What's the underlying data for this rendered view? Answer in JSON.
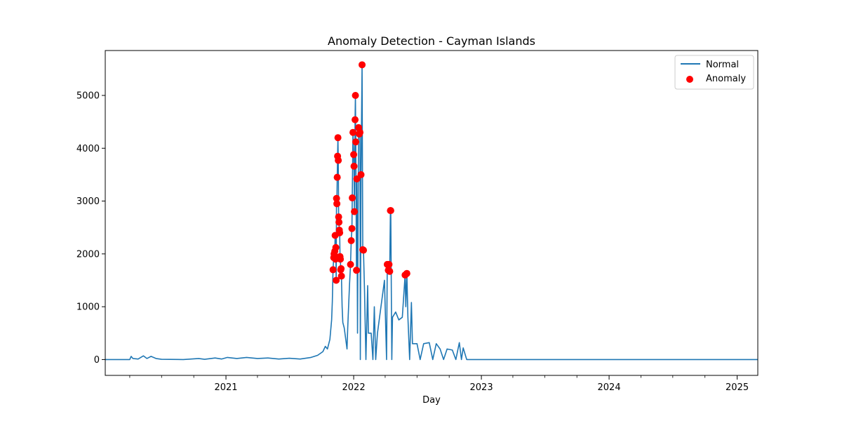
{
  "chart_data": {
    "type": "line",
    "title": "Anomaly Detection - Cayman Islands",
    "xlabel": "Day",
    "ylabel": "",
    "x_range": [
      "2020-01-22",
      "2025-03-01"
    ],
    "ylim": [
      -300,
      5850
    ],
    "y_ticks": [
      0,
      1000,
      2000,
      3000,
      4000,
      5000
    ],
    "x_ticks": [
      {
        "date": "2021-01-01",
        "label": "2021"
      },
      {
        "date": "2022-01-01",
        "label": "2022"
      },
      {
        "date": "2023-01-01",
        "label": "2023"
      },
      {
        "date": "2024-01-01",
        "label": "2024"
      },
      {
        "date": "2025-01-01",
        "label": "2025"
      }
    ],
    "grid": false,
    "legend_position": "top-right",
    "colors": {
      "normal": "#1f77b4",
      "anomaly": "#ff0000"
    },
    "series": [
      {
        "name": "Normal",
        "type": "line",
        "points": [
          [
            "2020-01-22",
            0
          ],
          [
            "2020-04-01",
            0
          ],
          [
            "2020-04-05",
            60
          ],
          [
            "2020-04-10",
            20
          ],
          [
            "2020-04-25",
            10
          ],
          [
            "2020-05-10",
            70
          ],
          [
            "2020-05-20",
            20
          ],
          [
            "2020-06-01",
            60
          ],
          [
            "2020-06-15",
            20
          ],
          [
            "2020-07-01",
            5
          ],
          [
            "2020-09-01",
            0
          ],
          [
            "2020-10-15",
            20
          ],
          [
            "2020-11-01",
            5
          ],
          [
            "2020-12-01",
            30
          ],
          [
            "2020-12-20",
            10
          ],
          [
            "2021-01-05",
            40
          ],
          [
            "2021-02-01",
            20
          ],
          [
            "2021-03-01",
            40
          ],
          [
            "2021-04-01",
            20
          ],
          [
            "2021-05-01",
            30
          ],
          [
            "2021-06-01",
            10
          ],
          [
            "2021-07-01",
            25
          ],
          [
            "2021-08-01",
            10
          ],
          [
            "2021-09-01",
            40
          ],
          [
            "2021-09-20",
            80
          ],
          [
            "2021-10-05",
            150
          ],
          [
            "2021-10-12",
            250
          ],
          [
            "2021-10-18",
            200
          ],
          [
            "2021-10-25",
            380
          ],
          [
            "2021-10-30",
            750
          ],
          [
            "2021-11-01",
            1100
          ],
          [
            "2021-11-03",
            1700
          ],
          [
            "2021-11-05",
            1930
          ],
          [
            "2021-11-06",
            2000
          ],
          [
            "2021-11-08",
            2050
          ],
          [
            "2021-11-09",
            2350
          ],
          [
            "2021-11-10",
            1900
          ],
          [
            "2021-11-11",
            2120
          ],
          [
            "2021-11-12",
            1500
          ],
          [
            "2021-11-13",
            3050
          ],
          [
            "2021-11-14",
            2950
          ],
          [
            "2021-11-15",
            3450
          ],
          [
            "2021-11-16",
            3850
          ],
          [
            "2021-11-17",
            4200
          ],
          [
            "2021-11-18",
            3770
          ],
          [
            "2021-11-19",
            2700
          ],
          [
            "2021-11-20",
            2600
          ],
          [
            "2021-11-21",
            2450
          ],
          [
            "2021-11-22",
            2400
          ],
          [
            "2021-11-23",
            1950
          ],
          [
            "2021-11-24",
            1900
          ],
          [
            "2021-11-25",
            1700
          ],
          [
            "2021-11-26",
            1720
          ],
          [
            "2021-11-27",
            1580
          ],
          [
            "2021-11-29",
            1000
          ],
          [
            "2021-12-01",
            700
          ],
          [
            "2021-12-05",
            600
          ],
          [
            "2021-12-10",
            350
          ],
          [
            "2021-12-13",
            200
          ],
          [
            "2021-12-15",
            600
          ],
          [
            "2021-12-20",
            1400
          ],
          [
            "2021-12-23",
            1800
          ],
          [
            "2021-12-25",
            2250
          ],
          [
            "2021-12-27",
            2480
          ],
          [
            "2021-12-28",
            3060
          ],
          [
            "2021-12-30",
            4300
          ],
          [
            "2022-01-01",
            3880
          ],
          [
            "2022-01-02",
            3660
          ],
          [
            "2022-01-03",
            2800
          ],
          [
            "2022-01-05",
            4540
          ],
          [
            "2022-01-06",
            5000
          ],
          [
            "2022-01-07",
            4120
          ],
          [
            "2022-01-09",
            1690
          ],
          [
            "2022-01-10",
            3420
          ],
          [
            "2022-01-12",
            500
          ],
          [
            "2022-01-15",
            4390
          ],
          [
            "2022-01-17",
            4270
          ],
          [
            "2022-01-19",
            4300
          ],
          [
            "2022-01-20",
            0
          ],
          [
            "2022-01-22",
            3500
          ],
          [
            "2022-01-25",
            5580
          ],
          [
            "2022-01-27",
            2080
          ],
          [
            "2022-01-29",
            2070
          ],
          [
            "2022-02-01",
            1300
          ],
          [
            "2022-02-05",
            0
          ],
          [
            "2022-02-10",
            1400
          ],
          [
            "2022-02-12",
            500
          ],
          [
            "2022-02-20",
            500
          ],
          [
            "2022-02-25",
            0
          ],
          [
            "2022-03-01",
            1000
          ],
          [
            "2022-03-05",
            0
          ],
          [
            "2022-03-10",
            500
          ],
          [
            "2022-03-20",
            1000
          ],
          [
            "2022-03-30",
            1500
          ],
          [
            "2022-04-05",
            0
          ],
          [
            "2022-04-07",
            1800
          ],
          [
            "2022-04-10",
            1690
          ],
          [
            "2022-04-12",
            1800
          ],
          [
            "2022-04-14",
            1670
          ],
          [
            "2022-04-16",
            2820
          ],
          [
            "2022-04-17",
            2820
          ],
          [
            "2022-04-20",
            0
          ],
          [
            "2022-04-22",
            800
          ],
          [
            "2022-05-01",
            900
          ],
          [
            "2022-05-10",
            750
          ],
          [
            "2022-05-20",
            800
          ],
          [
            "2022-05-28",
            1600
          ],
          [
            "2022-05-30",
            1000
          ],
          [
            "2022-06-02",
            1630
          ],
          [
            "2022-06-05",
            800
          ],
          [
            "2022-06-10",
            0
          ],
          [
            "2022-06-15",
            1080
          ],
          [
            "2022-06-18",
            300
          ],
          [
            "2022-07-01",
            300
          ],
          [
            "2022-07-10",
            0
          ],
          [
            "2022-07-20",
            300
          ],
          [
            "2022-08-05",
            320
          ],
          [
            "2022-08-15",
            0
          ],
          [
            "2022-08-25",
            300
          ],
          [
            "2022-09-05",
            200
          ],
          [
            "2022-09-15",
            0
          ],
          [
            "2022-09-25",
            200
          ],
          [
            "2022-10-10",
            180
          ],
          [
            "2022-10-20",
            0
          ],
          [
            "2022-10-30",
            320
          ],
          [
            "2022-11-05",
            0
          ],
          [
            "2022-11-10",
            220
          ],
          [
            "2022-11-20",
            0
          ],
          [
            "2022-12-01",
            0
          ],
          [
            "2025-03-01",
            0
          ]
        ]
      },
      {
        "name": "Anomaly",
        "type": "scatter",
        "points": [
          [
            "2021-11-03",
            1700
          ],
          [
            "2021-11-05",
            1930
          ],
          [
            "2021-11-06",
            2000
          ],
          [
            "2021-11-08",
            2050
          ],
          [
            "2021-11-09",
            2350
          ],
          [
            "2021-11-10",
            1900
          ],
          [
            "2021-11-11",
            2120
          ],
          [
            "2021-11-12",
            1500
          ],
          [
            "2021-11-13",
            3050
          ],
          [
            "2021-11-14",
            2950
          ],
          [
            "2021-11-15",
            3450
          ],
          [
            "2021-11-16",
            3850
          ],
          [
            "2021-11-17",
            4200
          ],
          [
            "2021-11-18",
            3770
          ],
          [
            "2021-11-19",
            2700
          ],
          [
            "2021-11-20",
            2600
          ],
          [
            "2021-11-21",
            2450
          ],
          [
            "2021-11-22",
            2400
          ],
          [
            "2021-11-23",
            1950
          ],
          [
            "2021-11-24",
            1900
          ],
          [
            "2021-11-25",
            1700
          ],
          [
            "2021-11-26",
            1720
          ],
          [
            "2021-11-27",
            1580
          ],
          [
            "2021-12-23",
            1800
          ],
          [
            "2021-12-25",
            2250
          ],
          [
            "2021-12-27",
            2480
          ],
          [
            "2021-12-28",
            3060
          ],
          [
            "2021-12-30",
            4300
          ],
          [
            "2022-01-01",
            3880
          ],
          [
            "2022-01-02",
            3660
          ],
          [
            "2022-01-03",
            2800
          ],
          [
            "2022-01-05",
            4540
          ],
          [
            "2022-01-06",
            5000
          ],
          [
            "2022-01-07",
            4120
          ],
          [
            "2022-01-09",
            1690
          ],
          [
            "2022-01-10",
            3420
          ],
          [
            "2022-01-15",
            4390
          ],
          [
            "2022-01-17",
            4270
          ],
          [
            "2022-01-19",
            4300
          ],
          [
            "2022-01-22",
            3500
          ],
          [
            "2022-01-25",
            5580
          ],
          [
            "2022-01-27",
            2080
          ],
          [
            "2022-01-29",
            2070
          ],
          [
            "2022-04-07",
            1800
          ],
          [
            "2022-04-10",
            1690
          ],
          [
            "2022-04-12",
            1800
          ],
          [
            "2022-04-14",
            1670
          ],
          [
            "2022-04-16",
            2820
          ],
          [
            "2022-04-17",
            2820
          ],
          [
            "2022-05-28",
            1600
          ],
          [
            "2022-06-02",
            1630
          ]
        ]
      }
    ],
    "legend": [
      {
        "label": "Normal",
        "marker": "line"
      },
      {
        "label": "Anomaly",
        "marker": "dot"
      }
    ]
  }
}
